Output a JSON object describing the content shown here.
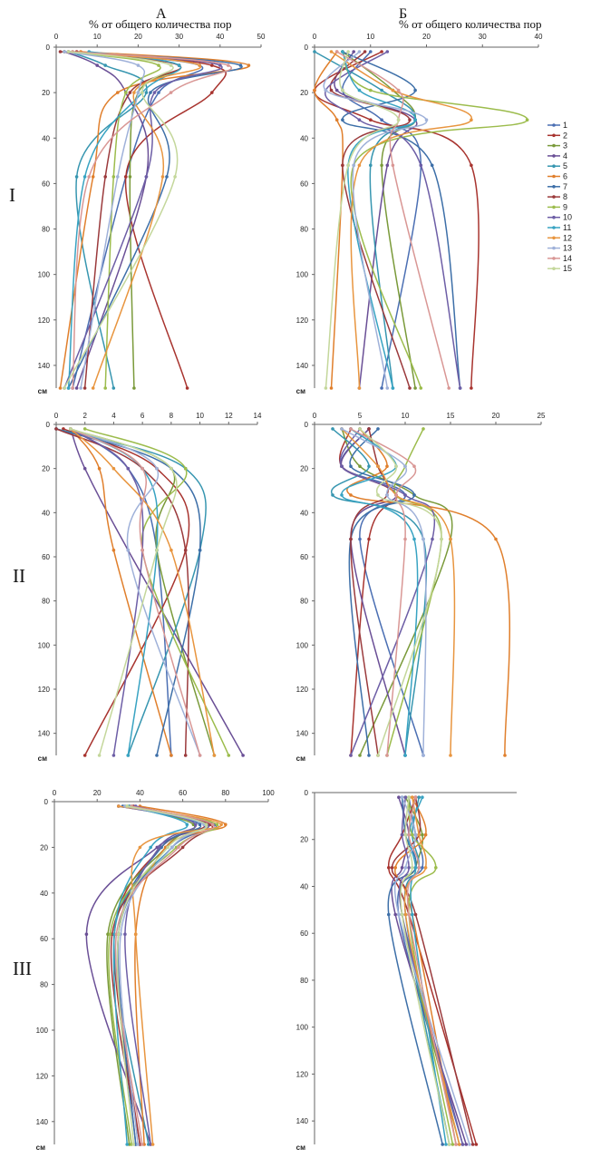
{
  "figure": {
    "col_a": "А",
    "col_b": "Б",
    "axis_title_a": "% от общего количества пор",
    "axis_title_b": "% от общего количества пор",
    "row_labels": [
      "I",
      "II",
      "III"
    ],
    "depth_unit": "см"
  },
  "series_colors": [
    "#4b6fb3",
    "#a8342f",
    "#7a9a3a",
    "#6a4f96",
    "#3796b0",
    "#e07f2c",
    "#3d6fa8",
    "#9b3a3c",
    "#9cbc4c",
    "#6d5ea6",
    "#38a3c2",
    "#e8953f",
    "#9fb1d9",
    "#d99795",
    "#c4d79b"
  ],
  "chart_data": [
    {
      "panel": "I-A",
      "type": "line",
      "orientation": "depth-profile",
      "xlim": [
        0,
        50
      ],
      "xticks": [
        0,
        10,
        20,
        30,
        40,
        50
      ],
      "ylim": [
        0,
        150
      ],
      "yticks": [
        0,
        20,
        40,
        60,
        80,
        100,
        120,
        140
      ],
      "depths": [
        2,
        8,
        20,
        57,
        150
      ],
      "series": [
        {
          "label": "1",
          "values": [
            3,
            35,
            25,
            17,
            4
          ]
        },
        {
          "label": "2",
          "values": [
            5,
            38,
            38,
            17,
            32
          ]
        },
        {
          "label": "3",
          "values": [
            4,
            30,
            20,
            18,
            19
          ]
        },
        {
          "label": "4",
          "values": [
            2,
            10,
            17,
            22,
            5
          ]
        },
        {
          "label": "5",
          "values": [
            3,
            12,
            22,
            5,
            14
          ]
        },
        {
          "label": "6",
          "values": [
            6,
            47,
            15,
            9,
            1
          ]
        },
        {
          "label": "7",
          "values": [
            2,
            45,
            23,
            27,
            3
          ]
        },
        {
          "label": "8",
          "values": [
            1,
            30,
            18,
            12,
            7
          ]
        },
        {
          "label": "9",
          "values": [
            2,
            25,
            17,
            14,
            12
          ]
        },
        {
          "label": "10",
          "values": [
            3,
            40,
            24,
            22,
            2
          ]
        },
        {
          "label": "11",
          "values": [
            8,
            30,
            21,
            7,
            3
          ]
        },
        {
          "label": "12",
          "values": [
            3,
            35,
            19,
            26,
            9
          ]
        },
        {
          "label": "13",
          "values": [
            2,
            20,
            20,
            15,
            6
          ]
        },
        {
          "label": "14",
          "values": [
            4,
            42,
            28,
            8,
            4
          ]
        },
        {
          "label": "15",
          "values": [
            3,
            28,
            21,
            29,
            2
          ]
        }
      ]
    },
    {
      "panel": "I-Б",
      "type": "line",
      "orientation": "depth-profile",
      "xlim": [
        0,
        40
      ],
      "xticks": [
        0,
        10,
        20,
        30,
        40
      ],
      "ylim": [
        0,
        150
      ],
      "yticks": [
        0,
        20,
        40,
        60,
        80,
        100,
        120,
        140
      ],
      "depths": [
        2,
        19,
        32,
        52,
        150
      ],
      "legend_position": "right",
      "series": [
        {
          "label": "1",
          "values": [
            10,
            5,
            12,
            19,
            12
          ]
        },
        {
          "label": "2",
          "values": [
            12,
            0,
            10,
            28,
            28
          ]
        },
        {
          "label": "3",
          "values": [
            5,
            14,
            18,
            12,
            18
          ]
        },
        {
          "label": "4",
          "values": [
            7,
            4,
            18,
            13,
            8
          ]
        },
        {
          "label": "5",
          "values": [
            0,
            12,
            18,
            10,
            14
          ]
        },
        {
          "label": "6",
          "values": [
            4,
            0,
            4,
            5,
            3
          ]
        },
        {
          "label": "7",
          "values": [
            5,
            18,
            5,
            21,
            26
          ]
        },
        {
          "label": "8",
          "values": [
            9,
            3,
            17,
            5,
            17
          ]
        },
        {
          "label": "9",
          "values": [
            5,
            10,
            38,
            7,
            19
          ]
        },
        {
          "label": "10",
          "values": [
            13,
            2,
            8,
            19,
            26
          ]
        },
        {
          "label": "11",
          "values": [
            5,
            8,
            18,
            6,
            14
          ]
        },
        {
          "label": "12",
          "values": [
            3,
            14,
            28,
            8,
            8
          ]
        },
        {
          "label": "13",
          "values": [
            8,
            2,
            20,
            7,
            13
          ]
        },
        {
          "label": "14",
          "values": [
            4,
            15,
            15,
            14,
            24
          ]
        },
        {
          "label": "15",
          "values": [
            6,
            5,
            15,
            6,
            2
          ]
        }
      ]
    },
    {
      "panel": "II-A",
      "type": "line",
      "orientation": "depth-profile",
      "xlim": [
        0,
        14
      ],
      "xticks": [
        0,
        2,
        4,
        6,
        8,
        10,
        12,
        14
      ],
      "ylim": [
        0,
        150
      ],
      "yticks": [
        0,
        20,
        40,
        60,
        80,
        100,
        120,
        140
      ],
      "depths": [
        2,
        20,
        57,
        150
      ],
      "series": [
        {
          "label": "1",
          "values": [
            1,
            5,
            7,
            8
          ]
        },
        {
          "label": "2",
          "values": [
            0.5,
            7,
            9,
            2
          ]
        },
        {
          "label": "3",
          "values": [
            1,
            8,
            7,
            11
          ]
        },
        {
          "label": "4",
          "values": [
            1,
            2,
            5,
            13
          ]
        },
        {
          "label": "5",
          "values": [
            0,
            9,
            10,
            5
          ]
        },
        {
          "label": "6",
          "values": [
            1,
            3,
            4,
            8
          ]
        },
        {
          "label": "7",
          "values": [
            0,
            8,
            10,
            7
          ]
        },
        {
          "label": "8",
          "values": [
            0,
            6,
            9,
            9
          ]
        },
        {
          "label": "9",
          "values": [
            2,
            9,
            6,
            12
          ]
        },
        {
          "label": "10",
          "values": [
            1,
            5,
            6,
            4
          ]
        },
        {
          "label": "11",
          "values": [
            1,
            6,
            7,
            5
          ]
        },
        {
          "label": "12",
          "values": [
            1,
            4,
            8,
            11
          ]
        },
        {
          "label": "13",
          "values": [
            1,
            7,
            5,
            10
          ]
        },
        {
          "label": "14",
          "values": [
            1,
            6,
            6,
            10
          ]
        },
        {
          "label": "15",
          "values": [
            1,
            8,
            7,
            3
          ]
        }
      ]
    },
    {
      "panel": "II-Б",
      "type": "line",
      "orientation": "depth-profile",
      "xlim": [
        0,
        25
      ],
      "xticks": [
        0,
        5,
        10,
        15,
        20,
        25
      ],
      "ylim": [
        0,
        150
      ],
      "yticks": [
        0,
        20,
        40,
        60,
        80,
        100,
        120,
        140
      ],
      "depths": [
        2,
        19,
        32,
        52,
        150
      ],
      "series": [
        {
          "label": "1",
          "values": [
            6,
            3,
            10,
            5,
            12
          ]
        },
        {
          "label": "2",
          "values": [
            4,
            3,
            9,
            6,
            4
          ]
        },
        {
          "label": "3",
          "values": [
            3,
            5,
            11,
            15,
            5
          ]
        },
        {
          "label": "4",
          "values": [
            6,
            3,
            9,
            4,
            10
          ]
        },
        {
          "label": "5",
          "values": [
            2,
            6,
            2,
            12,
            10
          ]
        },
        {
          "label": "6",
          "values": [
            5,
            8,
            4,
            20,
            21
          ]
        },
        {
          "label": "7",
          "values": [
            7,
            4,
            11,
            4,
            6
          ]
        },
        {
          "label": "8",
          "values": [
            6,
            7,
            8,
            4,
            7
          ]
        },
        {
          "label": "9",
          "values": [
            12,
            10,
            9,
            14,
            8
          ]
        },
        {
          "label": "10",
          "values": [
            5,
            3,
            10,
            13,
            4
          ]
        },
        {
          "label": "11",
          "values": [
            4,
            9,
            3,
            11,
            10
          ]
        },
        {
          "label": "12",
          "values": [
            3,
            7,
            9,
            15,
            15
          ]
        },
        {
          "label": "13",
          "values": [
            3,
            10,
            8,
            12,
            12
          ]
        },
        {
          "label": "14",
          "values": [
            4,
            11,
            9,
            10,
            8
          ]
        },
        {
          "label": "15",
          "values": [
            5,
            9,
            7,
            14,
            7
          ]
        }
      ]
    },
    {
      "panel": "III-A",
      "type": "line",
      "orientation": "depth-profile",
      "xlim": [
        0,
        100
      ],
      "xticks": [
        0,
        20,
        40,
        60,
        80,
        100
      ],
      "ylim": [
        0,
        150
      ],
      "yticks": [
        0,
        20,
        40,
        60,
        80,
        100,
        120,
        140
      ],
      "depths": [
        2,
        10,
        20,
        58,
        150
      ],
      "series": [
        {
          "label": "1",
          "values": [
            30,
            75,
            55,
            30,
            38
          ]
        },
        {
          "label": "2",
          "values": [
            35,
            70,
            50,
            28,
            40
          ]
        },
        {
          "label": "3",
          "values": [
            33,
            65,
            52,
            25,
            35
          ]
        },
        {
          "label": "4",
          "values": [
            30,
            72,
            48,
            15,
            45
          ]
        },
        {
          "label": "5",
          "values": [
            36,
            70,
            55,
            28,
            44
          ]
        },
        {
          "label": "6",
          "values": [
            40,
            80,
            52,
            38,
            42
          ]
        },
        {
          "label": "7",
          "values": [
            32,
            68,
            50,
            30,
            38
          ]
        },
        {
          "label": "8",
          "values": [
            37,
            73,
            60,
            27,
            40
          ]
        },
        {
          "label": "9",
          "values": [
            34,
            76,
            57,
            26,
            36
          ]
        },
        {
          "label": "10",
          "values": [
            38,
            66,
            49,
            33,
            45
          ]
        },
        {
          "label": "11",
          "values": [
            35,
            62,
            45,
            28,
            34
          ]
        },
        {
          "label": "12",
          "values": [
            30,
            78,
            40,
            38,
            46
          ]
        },
        {
          "label": "13",
          "values": [
            33,
            70,
            55,
            31,
            39
          ]
        },
        {
          "label": "14",
          "values": [
            36,
            74,
            58,
            29,
            41
          ]
        },
        {
          "label": "15",
          "values": [
            34,
            71,
            53,
            30,
            37
          ]
        }
      ]
    },
    {
      "panel": "III-Б",
      "type": "line",
      "orientation": "depth-profile",
      "xlim": [
        0,
        60
      ],
      "xticks": [],
      "ylim": [
        0,
        150
      ],
      "yticks": [
        0,
        20,
        40,
        60,
        80,
        100,
        120,
        140
      ],
      "depths": [
        2,
        18,
        32,
        52,
        150
      ],
      "series": [
        {
          "label": "1",
          "values": [
            28,
            30,
            32,
            25,
            44
          ]
        },
        {
          "label": "2",
          "values": [
            30,
            26,
            22,
            28,
            48
          ]
        },
        {
          "label": "3",
          "values": [
            27,
            32,
            30,
            26,
            43
          ]
        },
        {
          "label": "4",
          "values": [
            25,
            28,
            26,
            24,
            45
          ]
        },
        {
          "label": "5",
          "values": [
            31,
            29,
            31,
            27,
            40
          ]
        },
        {
          "label": "6",
          "values": [
            29,
            33,
            24,
            29,
            42
          ]
        },
        {
          "label": "7",
          "values": [
            26,
            27,
            30,
            22,
            38
          ]
        },
        {
          "label": "8",
          "values": [
            30,
            31,
            23,
            30,
            47
          ]
        },
        {
          "label": "9",
          "values": [
            28,
            29,
            36,
            28,
            41
          ]
        },
        {
          "label": "10",
          "values": [
            27,
            26,
            28,
            26,
            44
          ]
        },
        {
          "label": "11",
          "values": [
            32,
            28,
            30,
            29,
            39
          ]
        },
        {
          "label": "12",
          "values": [
            29,
            31,
            33,
            27,
            43
          ]
        },
        {
          "label": "13",
          "values": [
            26,
            30,
            27,
            25,
            46
          ]
        },
        {
          "label": "14",
          "values": [
            30,
            28,
            31,
            28,
            42
          ]
        },
        {
          "label": "15",
          "values": [
            28,
            27,
            29,
            26,
            40
          ]
        }
      ]
    }
  ]
}
